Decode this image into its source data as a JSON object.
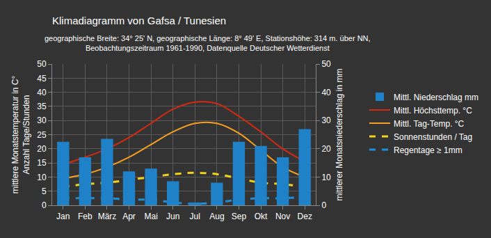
{
  "chart_data": {
    "type": "bar",
    "title": "Klimadiagramm von Gafsa / Tunesien",
    "subtitle": [
      "geographische Breite: 34° 25' N, geographische Länge: 8° 49' E, Stationshöhe: 314 m. über NN,",
      "Beobachtungszeitraum 1961-1990, Datenquelle Deutscher Wetterdienst"
    ],
    "y_label": [
      "mittlere Monatstemperatur in C°",
      "Anzahl Tage/Stunden"
    ],
    "y2_label": "mittlerer Monatsniederschlag in mm",
    "categories": [
      "Jan",
      "Feb",
      "März",
      "Apr",
      "Mai",
      "Jun",
      "Jul",
      "Aug",
      "Sep",
      "Okt",
      "Nov",
      "Dez"
    ],
    "series": [
      {
        "name": "Mittl. Niederschlag mm",
        "type": "bar",
        "axis": "y2",
        "color": "#1f82c8",
        "values": [
          22.5,
          17,
          23.5,
          12,
          13,
          8.5,
          1,
          8,
          22.5,
          21,
          17,
          27
        ]
      },
      {
        "name": "Mittl. Höchsttemp. °C",
        "type": "line",
        "line_style": "solid",
        "color": "#d42a10",
        "values": [
          14.5,
          17,
          20,
          24,
          29,
          34,
          36.5,
          36,
          31.5,
          26,
          20,
          15.5
        ]
      },
      {
        "name": "Mittl. Tag-Temp. °C",
        "type": "line",
        "line_style": "solid",
        "color": "#f5a020",
        "values": [
          9.5,
          11,
          13.5,
          17,
          21.5,
          26,
          29,
          29,
          25.5,
          19.5,
          13.5,
          10
        ]
      },
      {
        "name": "Sonnenstunden / Tag",
        "type": "line",
        "line_style": "dash",
        "color": "#f2d21e",
        "values": [
          6.5,
          7.5,
          8,
          9,
          10,
          11,
          11.5,
          11,
          9.5,
          8,
          7.5,
          6.5
        ]
      },
      {
        "name": "Regentage ≥ 1mm",
        "type": "line",
        "line_style": "dash",
        "color": "#1e8fd8",
        "values": [
          2.5,
          2.5,
          2.5,
          2,
          2,
          1,
          0.5,
          1,
          2,
          2.5,
          2.5,
          3
        ]
      }
    ],
    "ylim": [
      0,
      50
    ],
    "yticks": [
      0,
      5,
      10,
      15,
      20,
      25,
      30,
      35,
      40,
      45,
      50
    ],
    "y2lim": [
      0,
      50
    ],
    "y2ticks": [
      0,
      10,
      20,
      30,
      40,
      50
    ],
    "grid": true,
    "legend": "right"
  }
}
